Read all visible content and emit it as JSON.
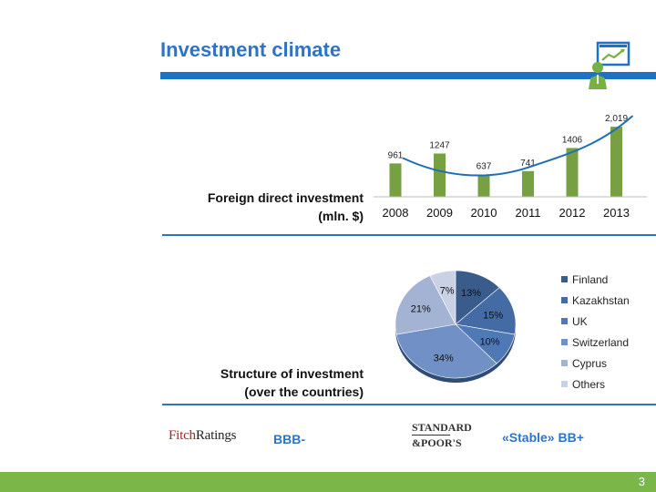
{
  "header": {
    "title": "Investment climate",
    "icon": "presenter-chart-icon"
  },
  "fdi": {
    "label_line1": "Foreign direct investment",
    "label_line2": "(mln. $)"
  },
  "structure": {
    "label_line1": "Structure of investment",
    "label_line2": "(over the countries)"
  },
  "chart_data": [
    {
      "type": "bar",
      "categories": [
        "2008",
        "2009",
        "2010",
        "2011",
        "2012",
        "2013"
      ],
      "values": [
        961,
        1247,
        637,
        741,
        1406,
        2019
      ],
      "data_labels": [
        "961",
        "1247",
        "637",
        "741",
        "1406",
        "2,019"
      ],
      "trendline": true,
      "bar_color": "#77a043",
      "trend_color": "#1f6fb5",
      "ylim": [
        0,
        2100
      ],
      "grid": false
    },
    {
      "type": "pie",
      "categories": [
        "Finland",
        "Kazakhstan",
        "UK",
        "Switzerland",
        "Cyprus",
        "Others"
      ],
      "values": [
        13,
        15,
        10,
        34,
        21,
        7
      ],
      "data_labels": [
        "13%",
        "15%",
        "10%",
        "34%",
        "21%",
        "7%"
      ],
      "colors": [
        "#3a5c8c",
        "#456ba4",
        "#4f79b5",
        "#7190c6",
        "#a3b3d3",
        "#c9d1e4"
      ],
      "legend_placement": "right"
    }
  ],
  "ratings": {
    "fitch_logo_a": "Fitch",
    "fitch_logo_b": "Ratings",
    "fitch_rating": "BBB-",
    "sp_logo_line1": "STANDARD",
    "sp_logo_line2": "&POOR'S",
    "sp_rating": "«Stable» BB+"
  },
  "footer": {
    "page_number": "3",
    "color": "#7ab648"
  }
}
